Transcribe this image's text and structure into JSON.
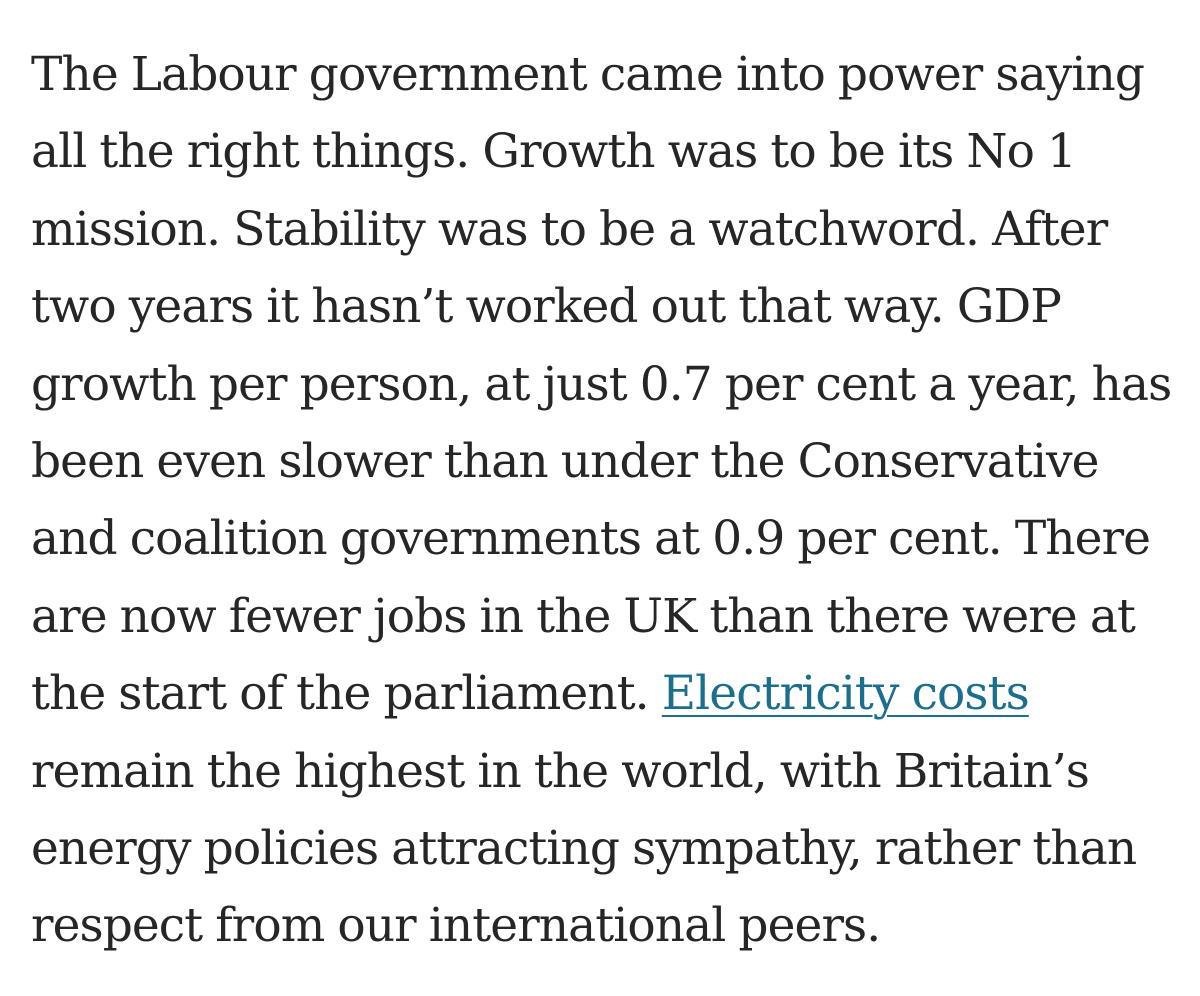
{
  "article": {
    "lines": [
      {
        "text": "The Labour government came into power saying"
      },
      {
        "text": "all the right things. Growth was to be its No 1"
      },
      {
        "text": "mission. Stability was to be a watchword. After"
      },
      {
        "text": "two years it hasn’t worked out that way. GDP"
      },
      {
        "text": "growth per person, at just 0.7 per cent a year, has"
      },
      {
        "text": "been even slower than under the Conservative"
      },
      {
        "text": "and coalition governments at 0.9 per cent. There"
      },
      {
        "text": "are now fewer jobs in the UK than there were at"
      },
      {
        "before": "the start of the parliament. ",
        "link": "Electricity costs"
      },
      {
        "text": "remain the highest in the world, with Britain’s"
      },
      {
        "text": "energy policies attracting sympathy, rather than"
      },
      {
        "text": "respect from our international peers."
      }
    ]
  },
  "colors": {
    "text": "#262626",
    "link": "#1b6f8e",
    "background": "#ffffff"
  }
}
